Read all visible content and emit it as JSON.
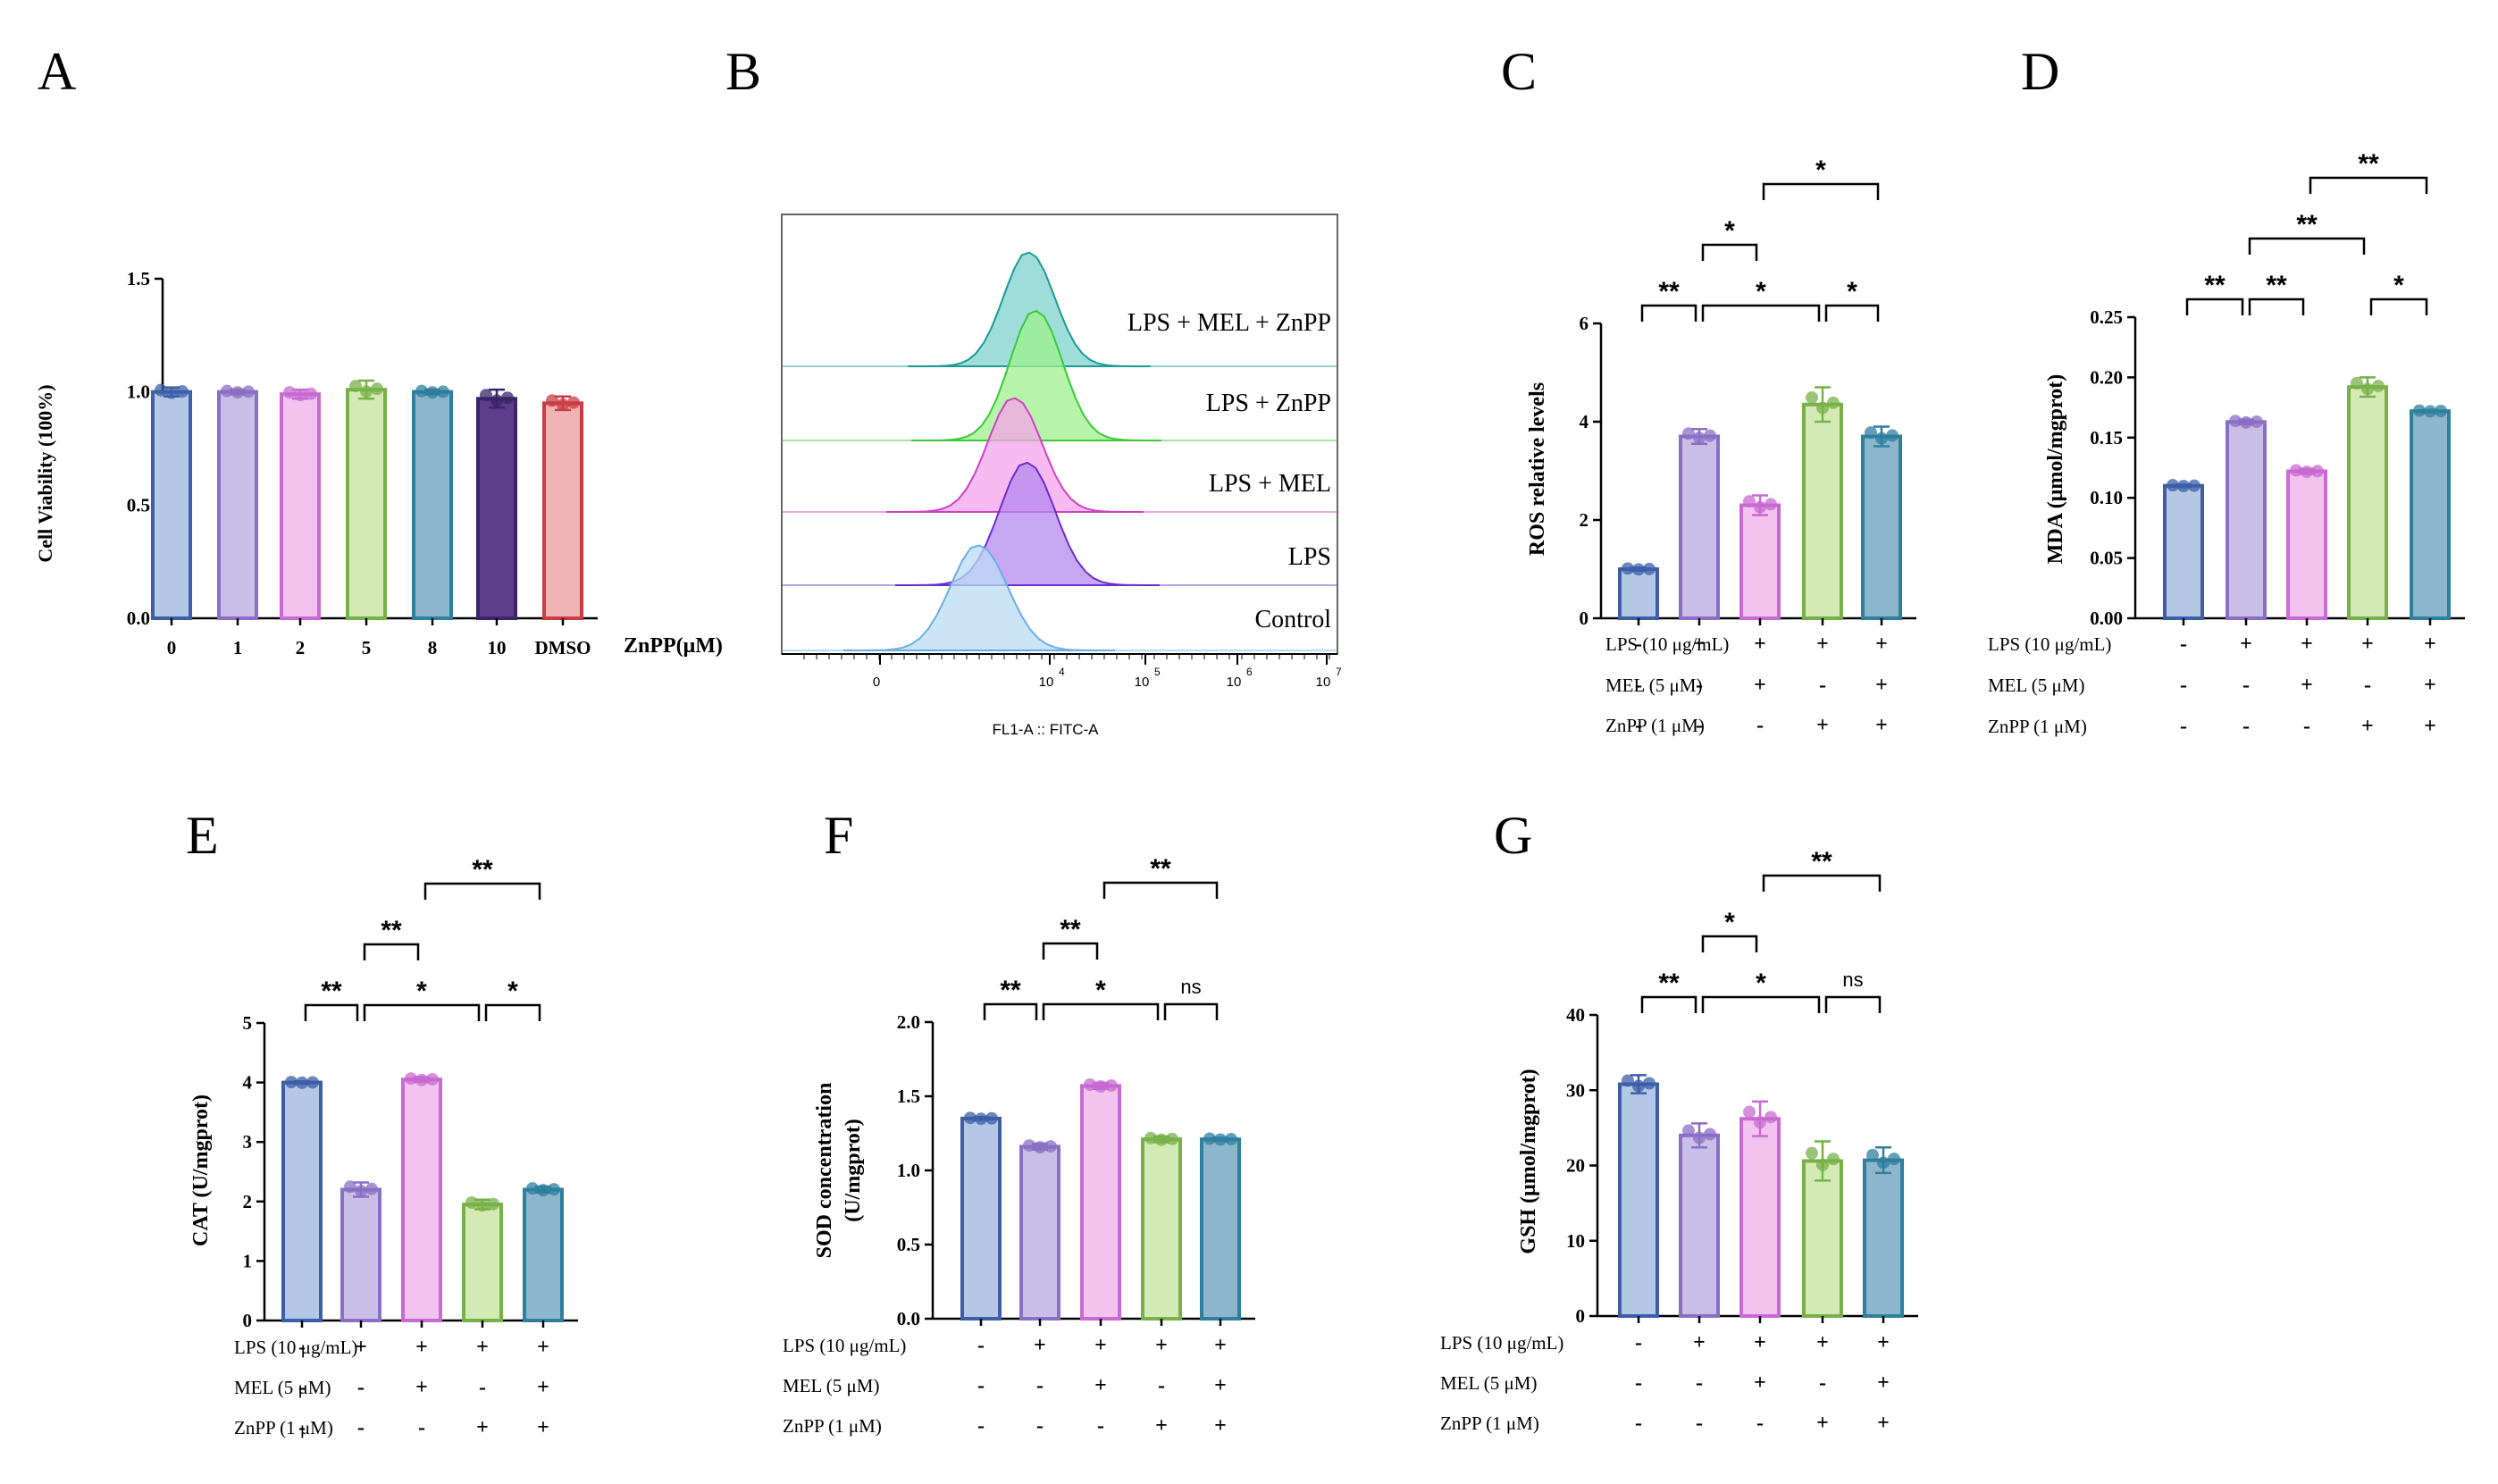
{
  "chart_data": [
    {
      "id": "A",
      "type": "bar",
      "panel_label": "A",
      "ylabel": "Cell Viability (100%)",
      "xlabel": "ZnPP(μM)",
      "ylim": [
        0,
        1.5
      ],
      "yticks": [
        "0.0",
        "0.5",
        "1.0",
        "1.5"
      ],
      "categories": [
        "0",
        "1",
        "2",
        "5",
        "8",
        "10",
        "DMSO"
      ],
      "values": [
        1.0,
        1.0,
        0.99,
        1.01,
        1.0,
        0.97,
        0.95
      ],
      "errors": [
        0.02,
        0.01,
        0.02,
        0.04,
        0.01,
        0.04,
        0.03
      ],
      "fills": [
        "#b4c8e6",
        "#c9bfe6",
        "#f3c3f0",
        "#d4eab4",
        "#8db6cc",
        "#5d3d8c",
        "#f0b4b4"
      ],
      "strokes": [
        "#3e5fa8",
        "#8a6fc4",
        "#c86ad2",
        "#78b04a",
        "#2f7f9f",
        "#3a2666",
        "#c83c46"
      ]
    },
    {
      "id": "C",
      "type": "bar",
      "panel_label": "C",
      "ylabel": "ROS relative levels",
      "ylim": [
        0,
        6
      ],
      "yticks": [
        "0",
        "2",
        "4",
        "6"
      ],
      "values": [
        1.0,
        3.7,
        2.3,
        4.35,
        3.7
      ],
      "errors": [
        0.03,
        0.15,
        0.2,
        0.35,
        0.2
      ],
      "treatments": [
        {
          "name": "LPS (10 μg/mL)",
          "signs": [
            "-",
            "+",
            "+",
            "+",
            "+"
          ]
        },
        {
          "name": "MEL (5 μM)",
          "signs": [
            "-",
            "-",
            "+",
            "-",
            "+"
          ]
        },
        {
          "name": "ZnPP (1 μM)",
          "signs": [
            "-",
            "-",
            "-",
            "+",
            "+"
          ]
        }
      ],
      "significance": [
        {
          "from": 0,
          "to": 1,
          "label": "**"
        },
        {
          "from": 1,
          "to": 3,
          "label": "*"
        },
        {
          "from": 3,
          "to": 4,
          "label": "*"
        },
        {
          "from": 1,
          "to": 2,
          "label": "*"
        },
        {
          "from": 2,
          "to": 4,
          "label": "*"
        }
      ]
    },
    {
      "id": "D",
      "type": "bar",
      "panel_label": "D",
      "ylabel": "MDA (μmol/mgprot)",
      "ylim": [
        0,
        0.25
      ],
      "yticks": [
        "0.00",
        "0.05",
        "0.10",
        "0.15",
        "0.20",
        "0.25"
      ],
      "values": [
        0.11,
        0.163,
        0.122,
        0.192,
        0.172
      ],
      "errors": [
        0.001,
        0.002,
        0.002,
        0.008,
        0.001
      ],
      "treatments": [
        {
          "name": "LPS (10 μg/mL)",
          "signs": [
            "-",
            "+",
            "+",
            "+",
            "+"
          ]
        },
        {
          "name": "MEL (5 μM)",
          "signs": [
            "-",
            "-",
            "+",
            "-",
            "+"
          ]
        },
        {
          "name": "ZnPP (1 μM)",
          "signs": [
            "-",
            "-",
            "-",
            "+",
            "+"
          ]
        }
      ],
      "significance": [
        {
          "from": 0,
          "to": 1,
          "label": "**"
        },
        {
          "from": 3,
          "to": 4,
          "label": "*"
        },
        {
          "from": 1,
          "to": 2,
          "label": "**"
        },
        {
          "from": 1,
          "to": 3,
          "label": "**"
        },
        {
          "from": 2,
          "to": 4,
          "label": "**"
        }
      ]
    },
    {
      "id": "E",
      "type": "bar",
      "panel_label": "E",
      "ylabel": "CAT (U/mgprot)",
      "ylim": [
        0,
        5
      ],
      "yticks": [
        "0",
        "1",
        "2",
        "3",
        "4",
        "5"
      ],
      "values": [
        4.0,
        2.2,
        4.05,
        1.95,
        2.2
      ],
      "errors": [
        0.02,
        0.12,
        0.04,
        0.08,
        0.05
      ],
      "treatments": [
        {
          "name": "LPS (10 μg/mL)",
          "signs": [
            "-",
            "+",
            "+",
            "+",
            "+"
          ]
        },
        {
          "name": "MEL (5 μM)",
          "signs": [
            "-",
            "-",
            "+",
            "-",
            "+"
          ]
        },
        {
          "name": "ZnPP (1 μM)",
          "signs": [
            "-",
            "-",
            "-",
            "+",
            "+"
          ]
        }
      ],
      "significance": [
        {
          "from": 0,
          "to": 1,
          "label": "**"
        },
        {
          "from": 1,
          "to": 3,
          "label": "*"
        },
        {
          "from": 3,
          "to": 4,
          "label": "*"
        },
        {
          "from": 1,
          "to": 2,
          "label": "**"
        },
        {
          "from": 2,
          "to": 4,
          "label": "**"
        }
      ]
    },
    {
      "id": "F",
      "type": "bar",
      "panel_label": "F",
      "ylabel": "SOD concentration",
      "ylabel2": "(U/mgprot)",
      "ylim": [
        0,
        2.0
      ],
      "yticks": [
        "0.0",
        "0.5",
        "1.0",
        "1.5",
        "2.0"
      ],
      "values": [
        1.35,
        1.16,
        1.57,
        1.21,
        1.21
      ],
      "errors": [
        0.01,
        0.02,
        0.02,
        0.02,
        0.01
      ],
      "treatments": [
        {
          "name": "LPS (10 μg/mL)",
          "signs": [
            "-",
            "+",
            "+",
            "+",
            "+"
          ]
        },
        {
          "name": "MEL (5 μM)",
          "signs": [
            "-",
            "-",
            "+",
            "-",
            "+"
          ]
        },
        {
          "name": "ZnPP (1 μM)",
          "signs": [
            "-",
            "-",
            "-",
            "+",
            "+"
          ]
        }
      ],
      "significance": [
        {
          "from": 0,
          "to": 1,
          "label": "**"
        },
        {
          "from": 1,
          "to": 3,
          "label": "*"
        },
        {
          "from": 3,
          "to": 4,
          "label": "ns"
        },
        {
          "from": 1,
          "to": 2,
          "label": "**"
        },
        {
          "from": 2,
          "to": 4,
          "label": "**"
        }
      ]
    },
    {
      "id": "G",
      "type": "bar",
      "panel_label": "G",
      "ylabel": "GSH (μmol/mgprot)",
      "ylim": [
        0,
        40
      ],
      "yticks": [
        "0",
        "10",
        "20",
        "30",
        "40"
      ],
      "values": [
        30.8,
        24.0,
        26.2,
        20.6,
        20.7
      ],
      "errors": [
        1.2,
        1.6,
        2.3,
        2.6,
        1.7
      ],
      "treatments": [
        {
          "name": "LPS (10 μg/mL)",
          "signs": [
            "-",
            "+",
            "+",
            "+",
            "+"
          ]
        },
        {
          "name": "MEL (5 μM)",
          "signs": [
            "-",
            "-",
            "+",
            "-",
            "+"
          ]
        },
        {
          "name": "ZnPP (1 μM)",
          "signs": [
            "-",
            "-",
            "-",
            "+",
            "+"
          ]
        }
      ],
      "significance": [
        {
          "from": 0,
          "to": 1,
          "label": "**"
        },
        {
          "from": 1,
          "to": 3,
          "label": "*"
        },
        {
          "from": 3,
          "to": 4,
          "label": "ns"
        },
        {
          "from": 1,
          "to": 2,
          "label": "*"
        },
        {
          "from": 2,
          "to": 4,
          "label": "**"
        }
      ]
    }
  ],
  "flow": {
    "panel_label": "B",
    "xlabel": "FL1-A :: FITC-A",
    "xticks": [
      "0",
      "10",
      "10",
      "10",
      "10"
    ],
    "xtick_exponents": [
      "",
      "4",
      "5",
      "6",
      "7"
    ],
    "traces": [
      {
        "label": "LPS + MEL + ZnPP",
        "peak": 0.55,
        "fill": "#7fd2cf",
        "stroke": "#1a9a94"
      },
      {
        "label": "LPS + ZnPP",
        "peak": 0.57,
        "fill": "#9cf08c",
        "stroke": "#3cc83a"
      },
      {
        "label": "LPS + MEL",
        "peak": 0.5,
        "fill": "#f6a4ec",
        "stroke": "#d040c4"
      },
      {
        "label": "LPS",
        "peak": 0.55,
        "fill": "#b488ee",
        "stroke": "#6a2cd0"
      },
      {
        "label": "Control",
        "peak": 0.4,
        "fill": "#b9dcf4",
        "stroke": "#6aaee2"
      }
    ]
  },
  "group_fills": [
    "#b4c8e6",
    "#c9bfe6",
    "#f3c3f0",
    "#d4eab4",
    "#8db6cc"
  ],
  "group_strokes": [
    "#3e5fa8",
    "#8a6fc4",
    "#c86ad2",
    "#78b04a",
    "#2f7f9f"
  ]
}
